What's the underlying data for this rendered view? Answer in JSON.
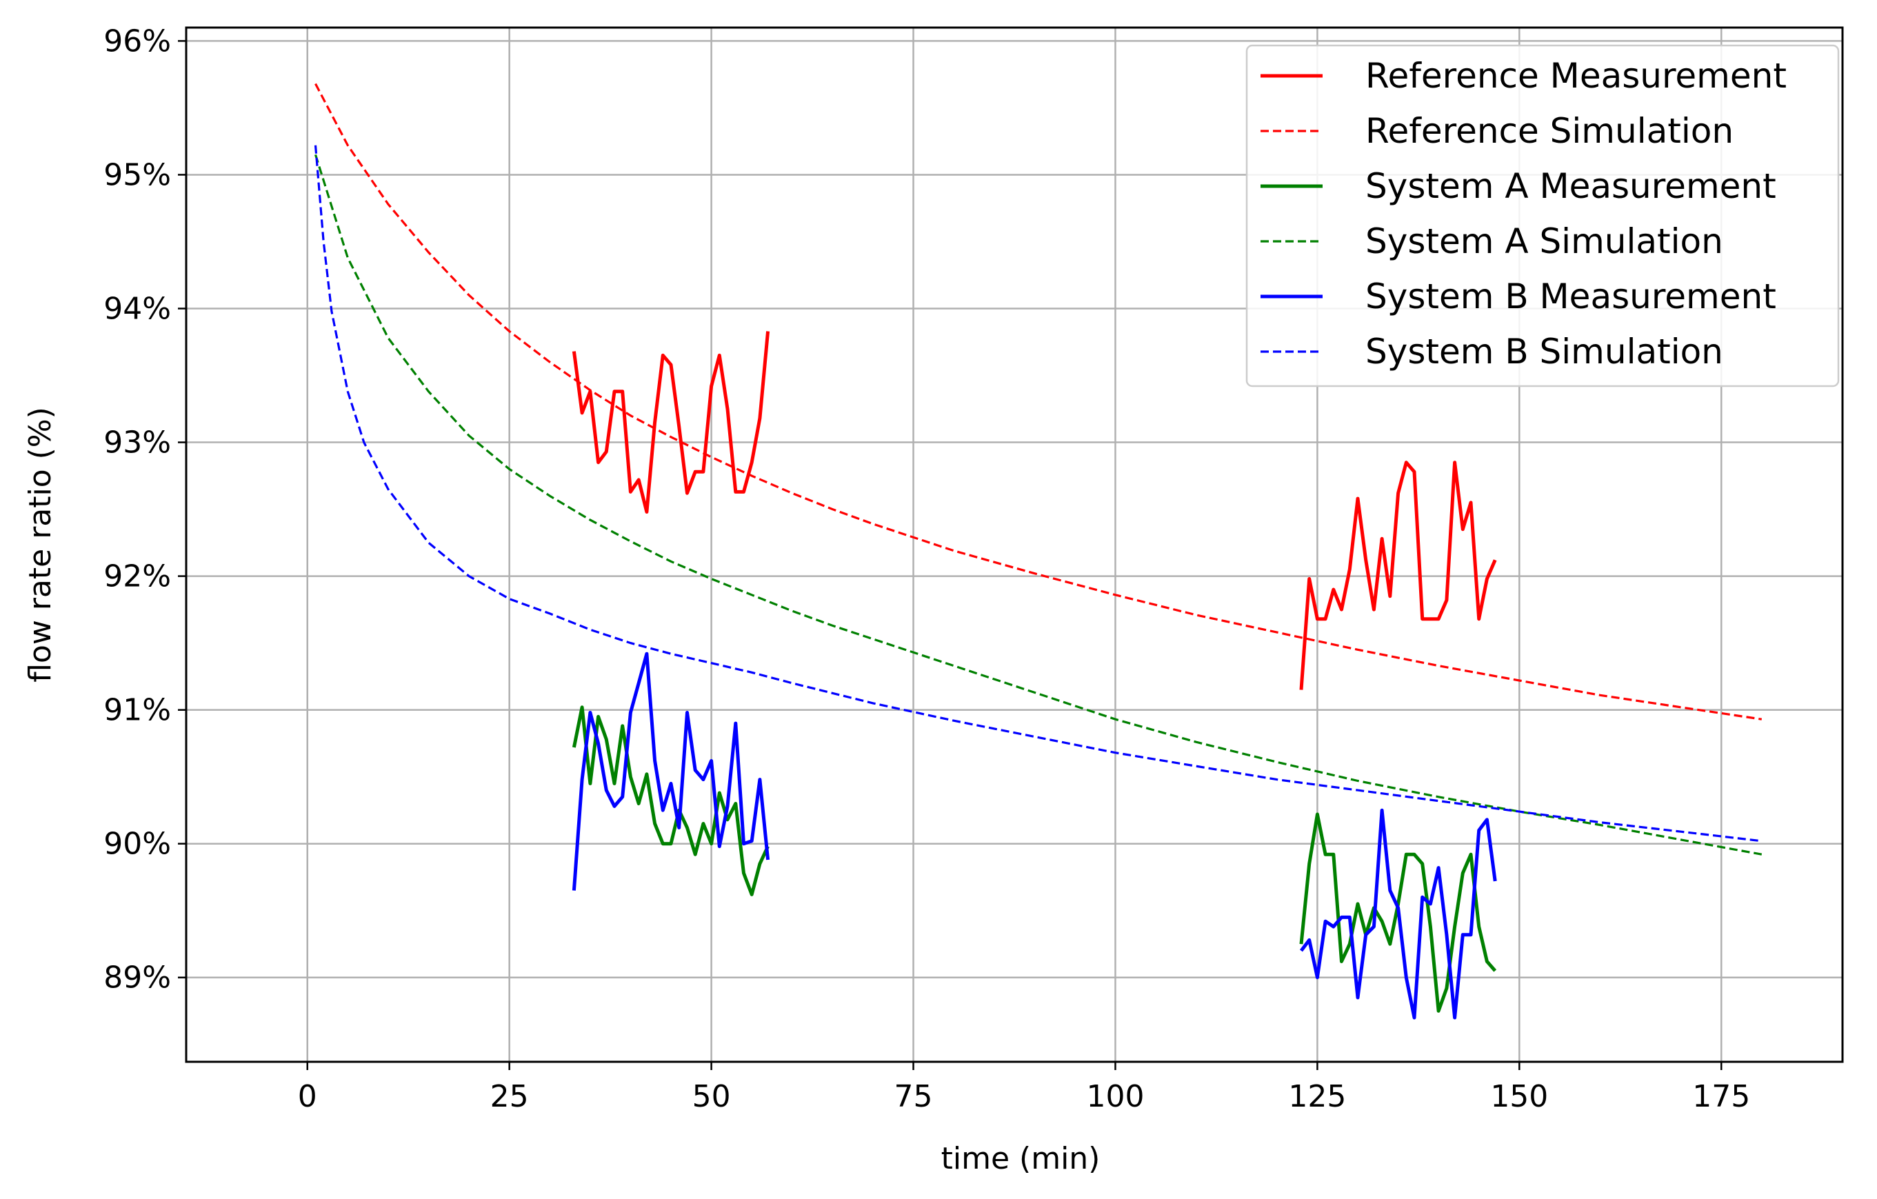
{
  "chart_data": {
    "type": "line",
    "title": "",
    "xlabel": "time (min)",
    "ylabel": "flow rate ratio (%)",
    "xlim": [
      -15,
      190
    ],
    "ylim": [
      88.37,
      96.1
    ],
    "grid": true,
    "legend_position": "top-right",
    "x_ticks": [
      0,
      25,
      50,
      75,
      100,
      125,
      150,
      175
    ],
    "x_tick_labels": [
      "0",
      "25",
      "50",
      "75",
      "100",
      "125",
      "150",
      "175"
    ],
    "y_ticks": [
      89,
      90,
      91,
      92,
      93,
      94,
      95,
      96
    ],
    "y_tick_labels": [
      "89%",
      "90%",
      "91%",
      "92%",
      "93%",
      "94%",
      "95%",
      "96%"
    ],
    "series": [
      {
        "name": "Reference Measurement",
        "color": "#ff0000",
        "style": "solid",
        "segments": [
          {
            "x": [
              33,
              34,
              35,
              36,
              37,
              38,
              39,
              40,
              41,
              42,
              43,
              44,
              45,
              46,
              47,
              48,
              49,
              50,
              51,
              52,
              53,
              54,
              55,
              56,
              57
            ],
            "y": [
              93.68,
              93.22,
              93.38,
              92.85,
              92.93,
              93.38,
              93.38,
              92.63,
              92.72,
              92.48,
              93.15,
              93.65,
              93.58,
              93.12,
              92.62,
              92.78,
              92.78,
              93.42,
              93.65,
              93.25,
              92.63,
              92.63,
              92.85,
              93.18,
              93.83
            ]
          },
          {
            "x": [
              123,
              124,
              125,
              126,
              127,
              128,
              129,
              130,
              131,
              132,
              133,
              134,
              135,
              136,
              137,
              138,
              139,
              140,
              141,
              142,
              143,
              144,
              145,
              146,
              147
            ],
            "y": [
              91.15,
              91.98,
              91.68,
              91.68,
              91.9,
              91.75,
              92.05,
              92.58,
              92.12,
              91.75,
              92.28,
              91.85,
              92.62,
              92.85,
              92.78,
              91.68,
              91.68,
              91.68,
              91.82,
              92.85,
              92.35,
              92.55,
              91.68,
              91.98,
              92.12
            ]
          }
        ]
      },
      {
        "name": "Reference Simulation",
        "color": "#ff0000",
        "style": "dashed",
        "segments": [
          {
            "x": [
              1,
              5,
              10,
              15,
              20,
              25,
              30,
              35,
              40,
              45,
              50,
              55,
              60,
              65,
              70,
              80,
              90,
              100,
              110,
              120,
              130,
              140,
              150,
              160,
              170,
              180
            ],
            "y": [
              95.68,
              95.22,
              94.78,
              94.42,
              94.1,
              93.83,
              93.6,
              93.39,
              93.2,
              93.04,
              92.89,
              92.75,
              92.62,
              92.5,
              92.39,
              92.19,
              92.02,
              91.86,
              91.71,
              91.58,
              91.45,
              91.33,
              91.22,
              91.11,
              91.02,
              90.93
            ]
          }
        ]
      },
      {
        "name": "System A Measurement",
        "color": "#008000",
        "style": "solid",
        "segments": [
          {
            "x": [
              33,
              34,
              35,
              36,
              37,
              38,
              39,
              40,
              41,
              42,
              43,
              44,
              45,
              46,
              47,
              48,
              49,
              50,
              51,
              52,
              53,
              54,
              55,
              56,
              57
            ],
            "y": [
              90.72,
              91.02,
              90.45,
              90.95,
              90.78,
              90.45,
              90.88,
              90.5,
              90.3,
              90.52,
              90.15,
              90.0,
              90.0,
              90.25,
              90.12,
              89.92,
              90.15,
              90.0,
              90.38,
              90.18,
              90.3,
              89.78,
              89.62,
              89.85,
              89.98
            ]
          },
          {
            "x": [
              123,
              124,
              125,
              126,
              127,
              128,
              129,
              130,
              131,
              132,
              133,
              134,
              135,
              136,
              137,
              138,
              139,
              140,
              141,
              142,
              143,
              144,
              145,
              146,
              147
            ],
            "y": [
              89.25,
              89.85,
              90.22,
              89.92,
              89.92,
              89.12,
              89.25,
              89.55,
              89.32,
              89.52,
              89.42,
              89.25,
              89.55,
              89.92,
              89.92,
              89.85,
              89.38,
              88.75,
              88.92,
              89.38,
              89.78,
              89.92,
              89.38,
              89.12,
              89.05
            ]
          }
        ]
      },
      {
        "name": "System A Simulation",
        "color": "#008000",
        "style": "dashed",
        "segments": [
          {
            "x": [
              1,
              5,
              10,
              15,
              20,
              25,
              30,
              35,
              40,
              45,
              50,
              55,
              60,
              65,
              70,
              80,
              90,
              100,
              110,
              120,
              130,
              140,
              150,
              160,
              170,
              180
            ],
            "y": [
              95.15,
              94.38,
              93.78,
              93.38,
              93.05,
              92.8,
              92.6,
              92.42,
              92.26,
              92.11,
              91.98,
              91.86,
              91.74,
              91.63,
              91.53,
              91.33,
              91.13,
              90.93,
              90.76,
              90.61,
              90.47,
              90.35,
              90.24,
              90.14,
              90.03,
              89.92
            ]
          }
        ]
      },
      {
        "name": "System B Measurement",
        "color": "#0000ff",
        "style": "solid",
        "segments": [
          {
            "x": [
              33,
              34,
              35,
              36,
              37,
              38,
              39,
              40,
              41,
              42,
              43,
              44,
              45,
              46,
              47,
              48,
              49,
              50,
              51,
              52,
              53,
              54,
              55,
              56,
              57
            ],
            "y": [
              89.65,
              90.48,
              90.98,
              90.75,
              90.4,
              90.28,
              90.35,
              90.98,
              91.2,
              91.42,
              90.62,
              90.25,
              90.45,
              90.12,
              90.98,
              90.55,
              90.48,
              90.62,
              89.98,
              90.28,
              90.9,
              90.0,
              90.02,
              90.48,
              89.88
            ]
          },
          {
            "x": [
              123,
              124,
              125,
              126,
              127,
              128,
              129,
              130,
              131,
              132,
              133,
              134,
              135,
              136,
              137,
              138,
              139,
              140,
              141,
              142,
              143,
              144,
              145,
              146,
              147
            ],
            "y": [
              89.2,
              89.28,
              89.0,
              89.42,
              89.38,
              89.45,
              89.45,
              88.85,
              89.32,
              89.38,
              90.25,
              89.65,
              89.52,
              89.0,
              88.7,
              89.6,
              89.55,
              89.82,
              89.32,
              88.7,
              89.32,
              89.32,
              90.1,
              90.18,
              89.72
            ]
          }
        ]
      },
      {
        "name": "System B Simulation",
        "color": "#0000ff",
        "style": "dashed",
        "segments": [
          {
            "x": [
              1,
              2,
              3,
              5,
              7,
              10,
              15,
              20,
              25,
              30,
              35,
              40,
              45,
              50,
              55,
              60,
              70,
              80,
              90,
              100,
              110,
              120,
              130,
              140,
              150,
              160,
              170,
              180
            ],
            "y": [
              95.22,
              94.5,
              93.98,
              93.38,
              93.0,
              92.65,
              92.25,
              92.0,
              91.83,
              91.72,
              91.6,
              91.5,
              91.42,
              91.35,
              91.28,
              91.2,
              91.05,
              90.92,
              90.8,
              90.68,
              90.58,
              90.48,
              90.4,
              90.32,
              90.24,
              90.16,
              90.09,
              90.02
            ]
          }
        ]
      }
    ]
  }
}
